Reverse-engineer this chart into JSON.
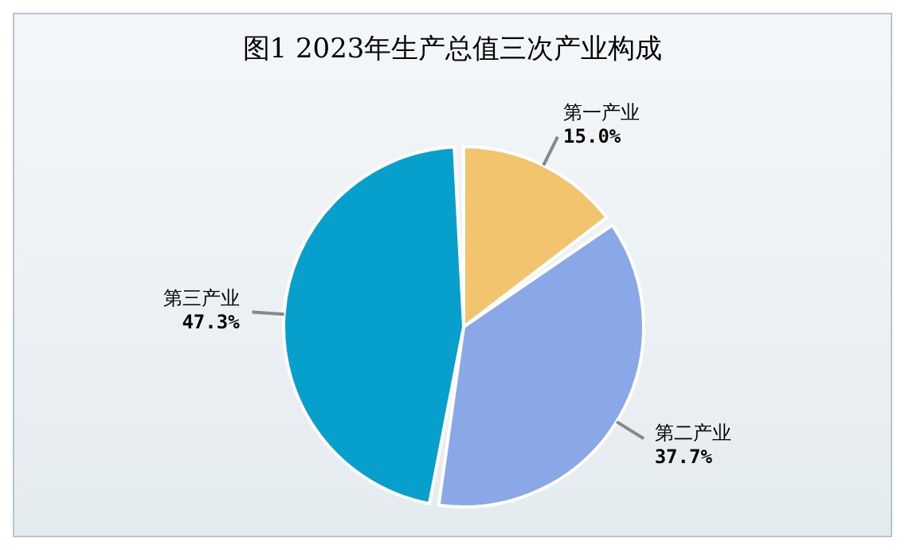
{
  "chart_data": {
    "type": "pie",
    "title": "图1  2023年生产总值三次产业构成",
    "categories": [
      "第一产业",
      "第二产业",
      "第三产业"
    ],
    "values": [
      15.0,
      37.7,
      47.3
    ],
    "colors": [
      "#f2c46e",
      "#8aa8e8",
      "#07a0cc"
    ],
    "value_labels": [
      "15.0%",
      "37.7%",
      "47.3%"
    ],
    "legend": false
  }
}
